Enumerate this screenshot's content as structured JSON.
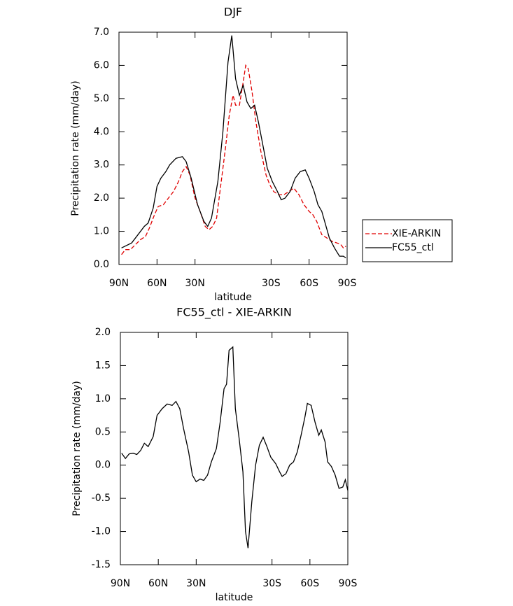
{
  "chart_data": [
    {
      "type": "line",
      "title": "DJF",
      "xlabel": "latitude",
      "ylabel": "Precipitation rate (mm/day)",
      "xlim": [
        90,
        -90
      ],
      "xticks": [
        {
          "value": 90,
          "label": "90N"
        },
        {
          "value": 60,
          "label": "60N"
        },
        {
          "value": 30,
          "label": "30N"
        },
        {
          "value": -30,
          "label": "30S"
        },
        {
          "value": -60,
          "label": "60S"
        },
        {
          "value": -90,
          "label": "90S"
        }
      ],
      "ylim": [
        0,
        7
      ],
      "yticks": [
        {
          "value": 0,
          "label": "0.0"
        },
        {
          "value": 1,
          "label": "1.0"
        },
        {
          "value": 2,
          "label": "2.0"
        },
        {
          "value": 3,
          "label": "3.0"
        },
        {
          "value": 4,
          "label": "4.0"
        },
        {
          "value": 5,
          "label": "5.0"
        },
        {
          "value": 6,
          "label": "6.0"
        },
        {
          "value": 7,
          "label": "7.0"
        }
      ],
      "legend": "right",
      "series": [
        {
          "name": "XIE-ARKIN",
          "color": "#e00000",
          "dash": true,
          "x": [
            88,
            85,
            81,
            77,
            73,
            69,
            66,
            62,
            59,
            55,
            51,
            47,
            43,
            40,
            37,
            34,
            30,
            26,
            22,
            19,
            16,
            13,
            9,
            6,
            3,
            0,
            -2,
            -5,
            -8,
            -10,
            -12,
            -15,
            -18,
            -22,
            -26,
            -29,
            -32,
            -36,
            -40,
            -44,
            -48,
            -52,
            -56,
            -60,
            -63,
            -66,
            -70,
            -74,
            -78,
            -82,
            -85,
            -87,
            -89
          ],
          "values": [
            0.3,
            0.45,
            0.45,
            0.6,
            0.75,
            0.85,
            1.1,
            1.5,
            1.75,
            1.8,
            2.0,
            2.2,
            2.5,
            2.8,
            2.95,
            2.7,
            2.0,
            1.6,
            1.15,
            1.05,
            1.15,
            1.4,
            2.6,
            3.5,
            4.5,
            5.1,
            4.8,
            4.8,
            5.5,
            6.0,
            5.9,
            5.2,
            4.3,
            3.4,
            2.7,
            2.4,
            2.2,
            2.1,
            2.1,
            2.2,
            2.3,
            2.1,
            1.8,
            1.6,
            1.5,
            1.3,
            0.9,
            0.8,
            0.7,
            0.65,
            0.6,
            0.5,
            0.55
          ]
        },
        {
          "name": "FC55_ctl",
          "color": "#000000",
          "dash": false,
          "x": [
            88,
            80,
            75,
            70,
            67,
            63,
            60,
            57,
            53,
            50,
            45,
            40,
            37,
            33,
            28,
            23,
            20,
            17,
            12,
            8,
            4,
            1,
            -2,
            -5,
            -8,
            -11,
            -14,
            -17,
            -20,
            -24,
            -27,
            -31,
            -35,
            -38,
            -41,
            -45,
            -49,
            -53,
            -57,
            -60,
            -64,
            -67,
            -70,
            -73,
            -76,
            -80,
            -84,
            -87,
            -89
          ],
          "values": [
            0.5,
            0.65,
            0.9,
            1.15,
            1.25,
            1.7,
            2.35,
            2.6,
            2.8,
            3.0,
            3.2,
            3.25,
            3.1,
            2.6,
            1.8,
            1.3,
            1.15,
            1.4,
            2.5,
            4.0,
            6.1,
            6.9,
            5.6,
            5.1,
            5.4,
            4.9,
            4.7,
            4.8,
            4.3,
            3.5,
            2.9,
            2.5,
            2.2,
            1.95,
            2.0,
            2.2,
            2.6,
            2.8,
            2.85,
            2.6,
            2.2,
            1.8,
            1.6,
            1.2,
            0.8,
            0.5,
            0.25,
            0.25,
            0.2
          ]
        }
      ]
    },
    {
      "type": "line",
      "title": "FC55_ctl - XIE-ARKIN",
      "xlabel": "latitude",
      "ylabel": "Precipitation rate (mm/day)",
      "xlim": [
        90,
        -90
      ],
      "xticks": [
        {
          "value": 90,
          "label": "90N"
        },
        {
          "value": 60,
          "label": "60N"
        },
        {
          "value": 30,
          "label": "30N"
        },
        {
          "value": -30,
          "label": "30S"
        },
        {
          "value": -60,
          "label": "60S"
        },
        {
          "value": -90,
          "label": "90S"
        }
      ],
      "ylim": [
        -1.5,
        2
      ],
      "yticks": [
        -1.5,
        {
          "value": -1,
          "label": "-1.0"
        },
        -0.5,
        {
          "value": 0,
          "label": "0.0"
        },
        0.5,
        {
          "value": 1,
          "label": "1.0"
        },
        1.5,
        {
          "value": 2,
          "label": "2.0"
        }
      ],
      "series": [
        {
          "color": "#000000",
          "dash": false,
          "x": [
            89,
            86,
            83,
            80,
            77,
            74,
            71,
            68,
            64,
            61,
            57,
            53,
            49,
            46,
            43,
            40,
            36,
            33,
            30,
            27,
            24,
            21,
            18,
            14,
            11,
            8,
            6,
            4,
            1,
            -1,
            -4,
            -7,
            -9,
            -11,
            -14,
            -17,
            -20,
            -23,
            -26,
            -29,
            -33,
            -36,
            -38,
            -41,
            -44,
            -47,
            -50,
            -53,
            -56,
            -58,
            -61,
            -64,
            -67,
            -69,
            -72,
            -74,
            -77,
            -80,
            -83,
            -86,
            -88,
            -90
          ],
          "values": [
            0.18,
            0.1,
            0.17,
            0.18,
            0.16,
            0.22,
            0.33,
            0.28,
            0.43,
            0.75,
            0.85,
            0.92,
            0.9,
            0.96,
            0.85,
            0.55,
            0.2,
            -0.15,
            -0.25,
            -0.21,
            -0.23,
            -0.15,
            0.05,
            0.25,
            0.65,
            1.15,
            1.22,
            1.73,
            1.78,
            0.85,
            0.4,
            -0.1,
            -1.0,
            -1.25,
            -0.55,
            0.0,
            0.3,
            0.42,
            0.28,
            0.12,
            0.02,
            -0.1,
            -0.17,
            -0.13,
            0.0,
            0.05,
            0.2,
            0.45,
            0.72,
            0.93,
            0.9,
            0.65,
            0.45,
            0.53,
            0.35,
            0.05,
            -0.02,
            -0.15,
            -0.35,
            -0.33,
            -0.22,
            -0.38
          ]
        }
      ]
    }
  ]
}
